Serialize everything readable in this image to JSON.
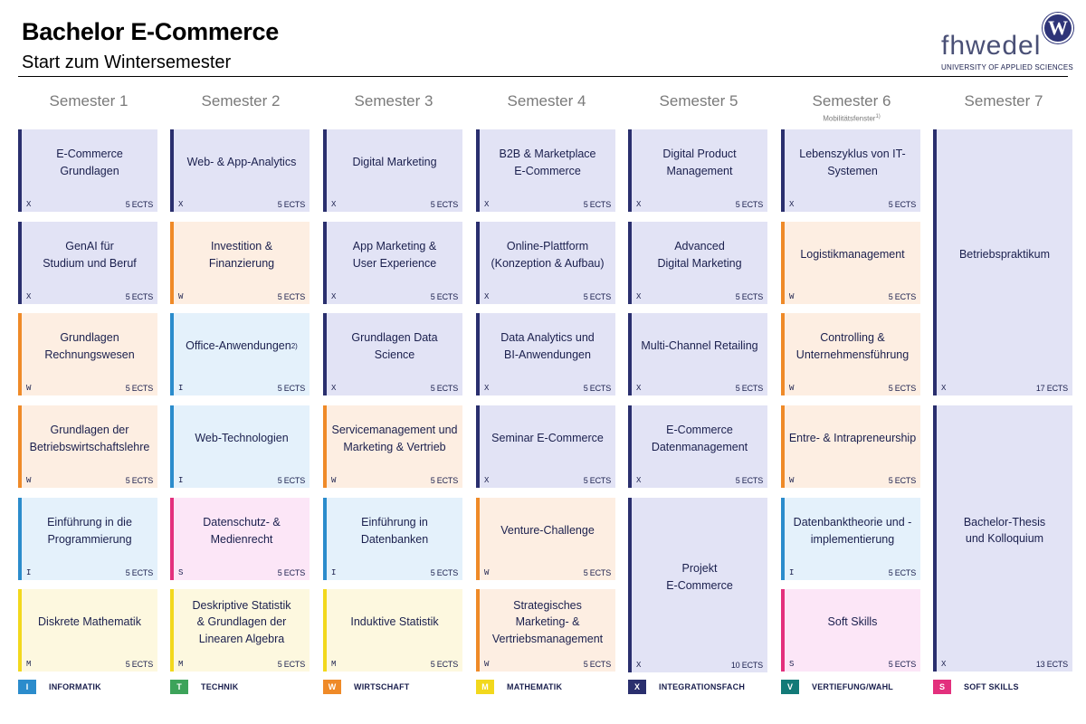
{
  "header": {
    "title": "Bachelor E-Commerce",
    "subtitle": "Start zum Wintersemester"
  },
  "logo": {
    "wordmark": "fhwedel",
    "emblem": "W",
    "tagline": "UNIVERSITY OF APPLIED SCIENCES"
  },
  "semesters": [
    {
      "label": "Semester 1",
      "note": "",
      "note_sup": ""
    },
    {
      "label": "Semester 2",
      "note": "",
      "note_sup": ""
    },
    {
      "label": "Semester 3",
      "note": "",
      "note_sup": ""
    },
    {
      "label": "Semester 4",
      "note": "",
      "note_sup": ""
    },
    {
      "label": "Semester 5",
      "note": "",
      "note_sup": ""
    },
    {
      "label": "Semester 6",
      "note": "Mobilitätsfenster",
      "note_sup": "1)"
    },
    {
      "label": "Semester 7",
      "note": "",
      "note_sup": ""
    }
  ],
  "modules": [
    [
      {
        "title": "E-Commerce Grundlagen",
        "code": "X",
        "ects": "5 ECTS"
      },
      {
        "title": "GenAI für\nStudium und Beruf",
        "code": "X",
        "ects": "5 ECTS"
      },
      {
        "title": "Grundlagen\nRechnungswesen",
        "code": "W",
        "ects": "5 ECTS"
      },
      {
        "title": "Grundlagen der\nBetriebswirtschaftslehre",
        "code": "W",
        "ects": "5 ECTS"
      },
      {
        "title": "Einführung in die\nProgrammierung",
        "code": "I",
        "ects": "5 ECTS"
      },
      {
        "title": "Diskrete Mathematik",
        "code": "M",
        "ects": "5 ECTS"
      }
    ],
    [
      {
        "title": "Web- & App-Analytics",
        "code": "X",
        "ects": "5 ECTS"
      },
      {
        "title": "Investition & Finanzierung",
        "code": "W",
        "ects": "5 ECTS"
      },
      {
        "title": "Office-Anwendungen",
        "title_sup": "2)",
        "code": "I",
        "ects": "5 ECTS"
      },
      {
        "title": "Web-Technologien",
        "code": "I",
        "ects": "5 ECTS"
      },
      {
        "title": "Datenschutz- &\nMedienrecht",
        "code": "S",
        "ects": "5 ECTS"
      },
      {
        "title": "Deskriptive Statistik\n& Grundlagen der\nLinearen Algebra",
        "code": "M",
        "ects": "5 ECTS"
      }
    ],
    [
      {
        "title": "Digital Marketing",
        "code": "X",
        "ects": "5 ECTS"
      },
      {
        "title": "App Marketing &\nUser Experience",
        "code": "X",
        "ects": "5 ECTS"
      },
      {
        "title": "Grundlagen Data Science",
        "code": "X",
        "ects": "5 ECTS"
      },
      {
        "title": "Servicemanagement und\nMarketing & Vertrieb",
        "code": "W",
        "ects": "5 ECTS"
      },
      {
        "title": "Einführung in\nDatenbanken",
        "code": "I",
        "ects": "5 ECTS"
      },
      {
        "title": "Induktive Statistik",
        "code": "M",
        "ects": "5 ECTS"
      }
    ],
    [
      {
        "title": "B2B & Marketplace\nE-Commerce",
        "code": "X",
        "ects": "5 ECTS"
      },
      {
        "title": "Online-Plattform\n(Konzeption & Aufbau)",
        "code": "X",
        "ects": "5 ECTS"
      },
      {
        "title": "Data Analytics und\nBI-Anwendungen",
        "code": "X",
        "ects": "5 ECTS"
      },
      {
        "title": "Seminar E-Commerce",
        "code": "X",
        "ects": "5 ECTS"
      },
      {
        "title": "Venture-Challenge",
        "code": "W",
        "ects": "5 ECTS"
      },
      {
        "title": "Strategisches\nMarketing- &\nVertriebsmanagement",
        "code": "W",
        "ects": "5 ECTS"
      }
    ],
    [
      {
        "title": "Digital Product\nManagement",
        "code": "X",
        "ects": "5 ECTS"
      },
      {
        "title": "Advanced\nDigital Marketing",
        "code": "X",
        "ects": "5 ECTS"
      },
      {
        "title": "Multi-Channel Retailing",
        "code": "X",
        "ects": "5 ECTS"
      },
      {
        "title": "E-Commerce\nDatenmanagement",
        "code": "X",
        "ects": "5 ECTS"
      },
      {
        "title": "Projekt\nE-Commerce",
        "code": "X",
        "ects": "10 ECTS",
        "span": 2
      }
    ],
    [
      {
        "title": "Lebenszyklus von IT-\nSystemen",
        "code": "X",
        "ects": "5 ECTS"
      },
      {
        "title": "Logistikmanagement",
        "code": "W",
        "ects": "5 ECTS"
      },
      {
        "title": "Controlling &\nUnternehmensführung",
        "code": "W",
        "ects": "5 ECTS"
      },
      {
        "title": "Entre- & Intrapreneurship",
        "code": "W",
        "ects": "5 ECTS"
      },
      {
        "title": "Datenbanktheorie und -\nimplementierung",
        "code": "I",
        "ects": "5 ECTS"
      },
      {
        "title": "Soft Skills",
        "code": "S",
        "ects": "5 ECTS"
      }
    ],
    [
      {
        "title": "Betriebspraktikum",
        "code": "X",
        "ects": "17 ECTS",
        "span": 3
      },
      {
        "title": "Bachelor-Thesis\nund Kolloquium",
        "code": "X",
        "ects": "13 ECTS",
        "span": 3
      }
    ]
  ],
  "legend": [
    {
      "code": "I",
      "label": "INFORMATIK",
      "color": "#2b8ccc"
    },
    {
      "code": "T",
      "label": "TECHNIK",
      "color": "#3da35a"
    },
    {
      "code": "W",
      "label": "WIRTSCHAFT",
      "color": "#ef8a28"
    },
    {
      "code": "M",
      "label": "MATHEMATIK",
      "color": "#f2d81d"
    },
    {
      "code": "X",
      "label": "INTEGRATIONSFACH",
      "color": "#2a2f6e"
    },
    {
      "code": "V",
      "label": "VERTIEFUNG/WAHL",
      "color": "#137a78"
    },
    {
      "code": "S",
      "label": "SOFT SKILLS",
      "color": "#e3307d"
    }
  ]
}
